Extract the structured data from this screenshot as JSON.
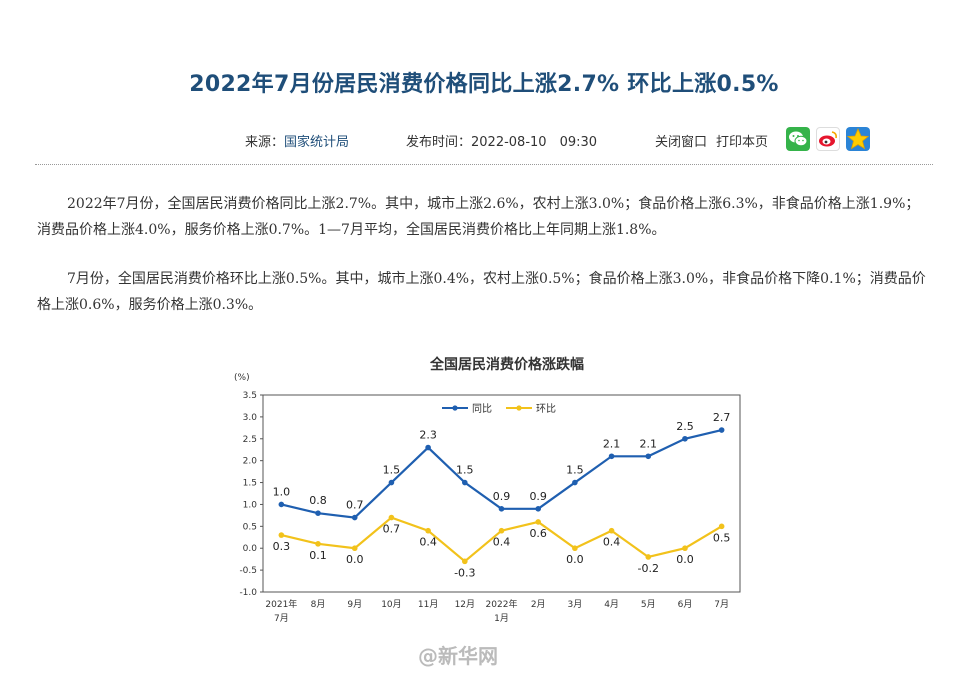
{
  "article": {
    "title": "2022年7月份居民消费价格同比上涨2.7% 环比上涨0.5%",
    "source_label": "来源：",
    "source_name": "国家统计局",
    "time_label": "发布时间：",
    "time_value": "2022-08-10　09:30",
    "close_label": "关闭窗口",
    "print_label": "打印本页",
    "paragraphs": [
      "2022年7月份，全国居民消费价格同比上涨2.7%。其中，城市上涨2.6%，农村上涨3.0%；食品价格上涨6.3%，非食品价格上涨1.9%；消费品价格上涨4.0%，服务价格上涨0.7%。1—7月平均，全国居民消费价格比上年同期上涨1.8%。",
      "7月份，全国居民消费价格环比上涨0.5%。其中，城市上涨0.4%，农村上涨0.5%；食品价格上涨3.0%，非食品价格下降0.1%；消费品价格上涨0.6%，服务价格上涨0.3%。"
    ]
  },
  "share": {
    "wechat_icon": "wechat-icon",
    "weibo_icon": "weibo-icon",
    "qzone_icon": "qzone-icon",
    "colors": {
      "wechat": "#35b34a",
      "weibo": "#e6162d",
      "qzone": "#2b84d6"
    }
  },
  "watermark": "@新华网",
  "chart_data": {
    "type": "line",
    "title": "全国居民消费价格涨跌幅",
    "ylabel": "(%)",
    "ylim": [
      -1.0,
      3.5
    ],
    "yticks": [
      "-1.0",
      "-0.5",
      "0.0",
      "0.5",
      "1.0",
      "1.5",
      "2.0",
      "2.5",
      "3.0",
      "3.5"
    ],
    "categories": [
      [
        "2021年",
        "7月"
      ],
      [
        "8月"
      ],
      [
        "9月"
      ],
      [
        "10月"
      ],
      [
        "11月"
      ],
      [
        "12月"
      ],
      [
        "2022年",
        "1月"
      ],
      [
        "2月"
      ],
      [
        "3月"
      ],
      [
        "4月"
      ],
      [
        "5月"
      ],
      [
        "6月"
      ],
      [
        "7月"
      ]
    ],
    "legend_position": "top",
    "series": [
      {
        "name": "同比",
        "color": "#1f5fb0",
        "values": [
          1.0,
          0.8,
          0.7,
          1.5,
          2.3,
          1.5,
          0.9,
          0.9,
          1.5,
          2.1,
          2.1,
          2.5,
          2.7
        ],
        "labels": [
          "1.0",
          "0.8",
          "0.7",
          "1.5",
          "2.3",
          "1.5",
          "0.9",
          "0.9",
          "1.5",
          "2.1",
          "2.1",
          "2.5",
          "2.7"
        ]
      },
      {
        "name": "环比",
        "color": "#f2c21b",
        "values": [
          0.3,
          0.1,
          0.0,
          0.7,
          0.4,
          -0.3,
          0.4,
          0.6,
          0.0,
          0.4,
          -0.2,
          0.0,
          0.5
        ],
        "labels": [
          "0.3",
          "0.1",
          "0.0",
          "0.7",
          "0.4",
          "-0.3",
          "0.4",
          "0.6",
          "0.0",
          "0.4",
          "-0.2",
          "0.0",
          "0.5"
        ]
      }
    ]
  }
}
